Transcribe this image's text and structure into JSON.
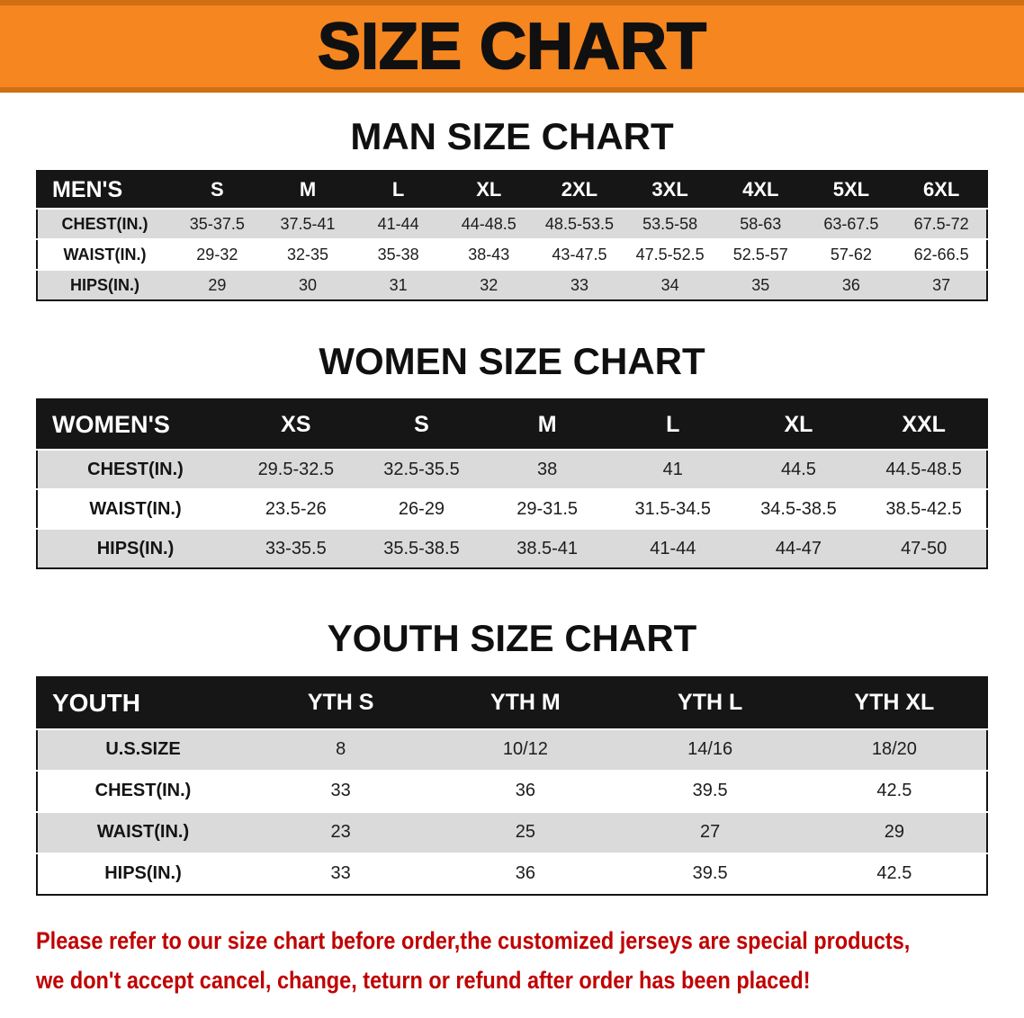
{
  "banner": {
    "title": "SIZE CHART",
    "background_color": "#f6861f"
  },
  "sections": {
    "men": {
      "heading": "MAN SIZE CHART",
      "table": {
        "header": [
          "MEN'S",
          "S",
          "M",
          "L",
          "XL",
          "2XL",
          "3XL",
          "4XL",
          "5XL",
          "6XL"
        ],
        "rows": [
          {
            "label": "CHEST(IN.)",
            "values": [
              "35-37.5",
              "37.5-41",
              "41-44",
              "44-48.5",
              "48.5-53.5",
              "53.5-58",
              "58-63",
              "63-67.5",
              "67.5-72"
            ]
          },
          {
            "label": "WAIST(IN.)",
            "values": [
              "29-32",
              "32-35",
              "35-38",
              "38-43",
              "43-47.5",
              "47.5-52.5",
              "52.5-57",
              "57-62",
              "62-66.5"
            ]
          },
          {
            "label": "HIPS(IN.)",
            "values": [
              "29",
              "30",
              "31",
              "32",
              "33",
              "34",
              "35",
              "36",
              "37"
            ]
          }
        ]
      }
    },
    "women": {
      "heading": "WOMEN SIZE CHART",
      "table": {
        "header": [
          "WOMEN'S",
          "XS",
          "S",
          "M",
          "L",
          "XL",
          "XXL"
        ],
        "rows": [
          {
            "label": "CHEST(IN.)",
            "values": [
              "29.5-32.5",
              "32.5-35.5",
              "38",
              "41",
              "44.5",
              "44.5-48.5"
            ]
          },
          {
            "label": "WAIST(IN.)",
            "values": [
              "23.5-26",
              "26-29",
              "29-31.5",
              "31.5-34.5",
              "34.5-38.5",
              "38.5-42.5"
            ]
          },
          {
            "label": "HIPS(IN.)",
            "values": [
              "33-35.5",
              "35.5-38.5",
              "38.5-41",
              "41-44",
              "44-47",
              "47-50"
            ]
          }
        ]
      }
    },
    "youth": {
      "heading": "YOUTH SIZE CHART",
      "table": {
        "header": [
          "YOUTH",
          "YTH S",
          "YTH M",
          "YTH L",
          "YTH XL"
        ],
        "rows": [
          {
            "label": "U.S.SIZE",
            "values": [
              "8",
              "10/12",
              "14/16",
              "18/20"
            ]
          },
          {
            "label": "CHEST(IN.)",
            "values": [
              "33",
              "36",
              "39.5",
              "42.5"
            ]
          },
          {
            "label": "WAIST(IN.)",
            "values": [
              "23",
              "25",
              "27",
              "29"
            ]
          },
          {
            "label": "HIPS(IN.)",
            "values": [
              "33",
              "36",
              "39.5",
              "42.5"
            ]
          }
        ]
      }
    }
  },
  "footer": {
    "line1": "Please refer to our size chart before order,the customized jerseys are special products,",
    "line2": "we don't accept cancel, change, teturn or refund after order has been placed!",
    "text_color": "#c00000"
  }
}
